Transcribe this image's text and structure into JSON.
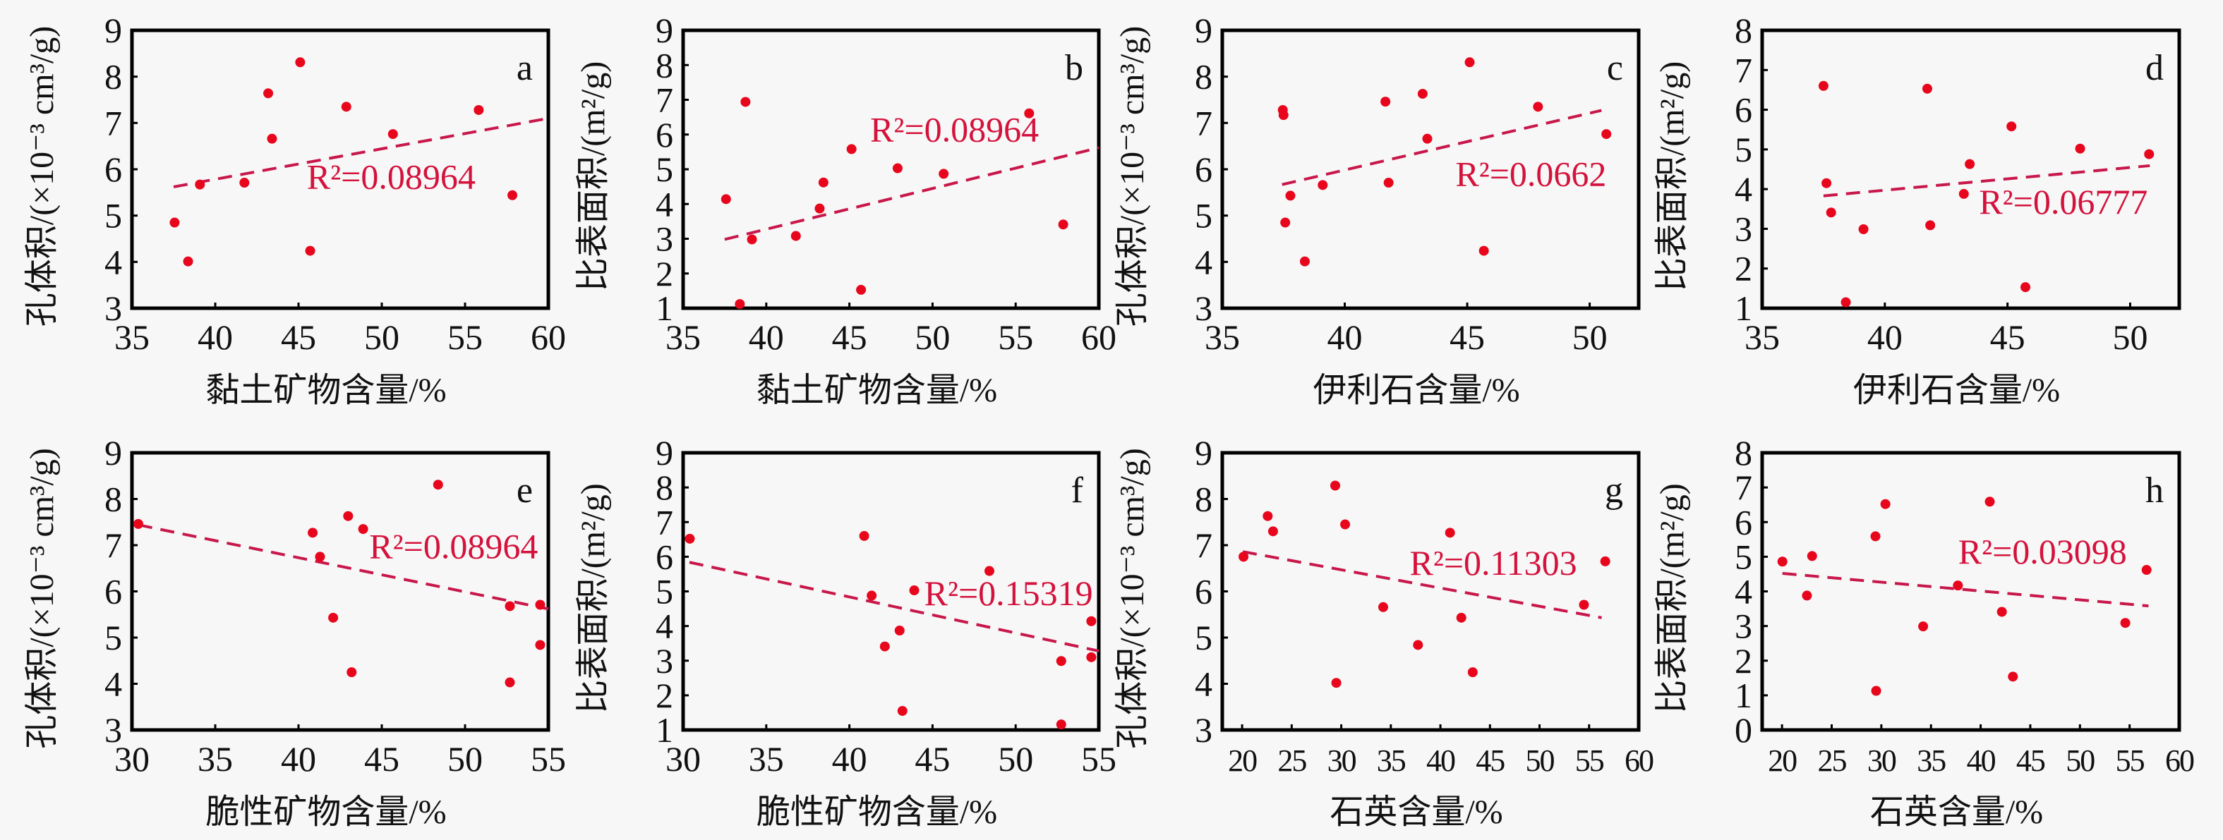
{
  "chart_data": [
    {
      "panel": "a",
      "type": "scatter",
      "xlabel": "黏土矿物含量/%",
      "ylabel": "孔体积/(×10⁻³ cm³/g)",
      "xlim": [
        35,
        60
      ],
      "ylim": [
        3,
        9
      ],
      "xticks": [
        35,
        40,
        45,
        50,
        55,
        60
      ],
      "yticks": [
        3,
        4,
        5,
        6,
        7,
        8,
        9
      ],
      "r2_label": "R²=0.08964",
      "points": [
        [
          37.56,
          4.85
        ],
        [
          38.37,
          4.01
        ],
        [
          39.08,
          5.67
        ],
        [
          41.75,
          5.71
        ],
        [
          43.18,
          7.64
        ],
        [
          43.41,
          6.66
        ],
        [
          45.1,
          8.31
        ],
        [
          45.7,
          4.24
        ],
        [
          47.87,
          7.35
        ],
        [
          50.67,
          6.76
        ],
        [
          55.82,
          7.28
        ],
        [
          57.84,
          5.44
        ]
      ],
      "trendline": [
        [
          37.5,
          5.62
        ],
        [
          60,
          7.1
        ]
      ]
    },
    {
      "panel": "b",
      "type": "scatter",
      "xlabel": "黏土矿物含量/%",
      "ylabel": "比表面积/(m²/g)",
      "xlim": [
        35,
        60
      ],
      "ylim": [
        1,
        9
      ],
      "xticks": [
        35,
        40,
        45,
        50,
        55,
        60
      ],
      "yticks": [
        1,
        2,
        3,
        4,
        5,
        6,
        7,
        8,
        9
      ],
      "r2_label": "R²=0.08964",
      "points": [
        [
          37.58,
          4.14
        ],
        [
          38.41,
          1.12
        ],
        [
          38.75,
          6.94
        ],
        [
          39.14,
          2.98
        ],
        [
          41.78,
          3.08
        ],
        [
          43.21,
          3.87
        ],
        [
          43.44,
          4.62
        ],
        [
          45.13,
          5.58
        ],
        [
          45.7,
          1.53
        ],
        [
          47.9,
          5.03
        ],
        [
          50.67,
          4.87
        ],
        [
          55.81,
          6.61
        ],
        [
          57.86,
          3.41
        ]
      ],
      "trendline": [
        [
          37.5,
          2.98
        ],
        [
          60,
          5.62
        ]
      ]
    },
    {
      "panel": "c",
      "type": "scatter",
      "xlabel": "伊利石含量/%",
      "ylabel": "孔体积/(×10⁻³ cm³/g)",
      "xlim": [
        35,
        52
      ],
      "ylim": [
        3,
        9
      ],
      "xticks": [
        35,
        40,
        45,
        50
      ],
      "yticks": [
        3,
        4,
        5,
        6,
        7,
        8,
        9
      ],
      "r2_label": "R²=0.0662",
      "points": [
        [
          37.47,
          7.28
        ],
        [
          37.5,
          7.17
        ],
        [
          37.57,
          4.85
        ],
        [
          37.78,
          5.43
        ],
        [
          38.37,
          4.01
        ],
        [
          39.1,
          5.66
        ],
        [
          41.66,
          7.46
        ],
        [
          41.79,
          5.71
        ],
        [
          43.18,
          7.63
        ],
        [
          43.37,
          6.66
        ],
        [
          45.1,
          8.31
        ],
        [
          45.68,
          4.24
        ],
        [
          47.89,
          7.35
        ],
        [
          50.68,
          6.76
        ]
      ],
      "trendline": [
        [
          37.44,
          5.67
        ],
        [
          50.48,
          7.27
        ]
      ]
    },
    {
      "panel": "d",
      "type": "scatter",
      "xlabel": "伊利石含量/%",
      "ylabel": "比表面积/(m²/g)",
      "xlim": [
        35,
        52
      ],
      "ylim": [
        1,
        8
      ],
      "xticks": [
        35,
        40,
        45,
        50
      ],
      "yticks": [
        1,
        2,
        3,
        4,
        5,
        6,
        7,
        8
      ],
      "r2_label": "R²=0.06777",
      "points": [
        [
          37.5,
          6.6
        ],
        [
          37.62,
          4.15
        ],
        [
          37.81,
          3.41
        ],
        [
          38.41,
          1.15
        ],
        [
          39.13,
          2.99
        ],
        [
          41.73,
          6.53
        ],
        [
          41.85,
          3.09
        ],
        [
          43.22,
          3.88
        ],
        [
          43.46,
          4.63
        ],
        [
          45.16,
          5.58
        ],
        [
          45.73,
          1.53
        ],
        [
          47.96,
          5.02
        ],
        [
          50.77,
          4.88
        ]
      ],
      "trendline": [
        [
          37.5,
          3.83
        ],
        [
          50.8,
          4.59
        ]
      ]
    },
    {
      "panel": "e",
      "type": "scatter",
      "xlabel": "脆性矿物含量/%",
      "ylabel": "孔体积/(×10⁻³ cm³/g)",
      "xlim": [
        30,
        55
      ],
      "ylim": [
        3,
        9
      ],
      "xticks": [
        30,
        35,
        40,
        45,
        50,
        55
      ],
      "yticks": [
        3,
        4,
        5,
        6,
        7,
        8,
        9
      ],
      "r2_label": "R²=0.08964",
      "points": [
        [
          30.38,
          7.46
        ],
        [
          40.85,
          7.27
        ],
        [
          41.29,
          6.75
        ],
        [
          42.08,
          5.43
        ],
        [
          42.98,
          7.63
        ],
        [
          43.19,
          4.25
        ],
        [
          43.88,
          7.35
        ],
        [
          48.38,
          8.31
        ],
        [
          52.69,
          5.68
        ],
        [
          52.69,
          4.03
        ],
        [
          54.51,
          5.71
        ],
        [
          54.51,
          4.84
        ]
      ],
      "trendline": [
        [
          30.38,
          7.44
        ],
        [
          55,
          5.62
        ]
      ]
    },
    {
      "panel": "f",
      "type": "scatter",
      "xlabel": "脆性矿物含量/%",
      "ylabel": "比表面积/(m²/g)",
      "xlim": [
        30,
        55
      ],
      "ylim": [
        1,
        9
      ],
      "xticks": [
        30,
        35,
        40,
        45,
        50,
        55
      ],
      "yticks": [
        1,
        2,
        3,
        4,
        5,
        6,
        7,
        8,
        9
      ],
      "r2_label": "R²=0.15319",
      "points": [
        [
          30.4,
          6.52
        ],
        [
          40.89,
          6.6
        ],
        [
          41.34,
          4.88
        ],
        [
          42.13,
          3.41
        ],
        [
          43.02,
          3.87
        ],
        [
          43.19,
          1.55
        ],
        [
          43.9,
          5.03
        ],
        [
          48.42,
          5.59
        ],
        [
          52.74,
          2.99
        ],
        [
          52.74,
          1.16
        ],
        [
          54.55,
          4.14
        ],
        [
          54.55,
          3.1
        ]
      ],
      "trendline": [
        [
          30.38,
          5.84
        ],
        [
          55,
          3.28
        ]
      ]
    },
    {
      "panel": "g",
      "type": "scatter",
      "xlabel": "石英含量/%",
      "ylabel": "孔体积/(×10⁻³ cm³/g)",
      "xlim": [
        18,
        60
      ],
      "ylim": [
        3,
        9
      ],
      "xticks": [
        20,
        25,
        30,
        35,
        40,
        45,
        50,
        55,
        60
      ],
      "yticks": [
        3,
        4,
        5,
        6,
        7,
        8,
        9
      ],
      "r2_label": "R²=0.11303",
      "points": [
        [
          20.14,
          6.75
        ],
        [
          22.58,
          7.63
        ],
        [
          23.12,
          7.3
        ],
        [
          29.39,
          8.29
        ],
        [
          29.5,
          4.02
        ],
        [
          30.39,
          7.45
        ],
        [
          34.23,
          5.66
        ],
        [
          37.74,
          4.84
        ],
        [
          40.97,
          7.27
        ],
        [
          42.11,
          5.43
        ],
        [
          43.26,
          4.25
        ],
        [
          54.48,
          5.71
        ],
        [
          56.63,
          6.65
        ]
      ],
      "trendline": [
        [
          20.07,
          6.86
        ],
        [
          56.27,
          5.43
        ]
      ]
    },
    {
      "panel": "h",
      "type": "scatter",
      "xlabel": "石英含量/%",
      "ylabel": "比表面积/(m²/g)",
      "xlim": [
        18,
        60
      ],
      "ylim": [
        0,
        8
      ],
      "xticks": [
        20,
        25,
        30,
        35,
        40,
        45,
        50,
        55,
        60
      ],
      "yticks": [
        0,
        1,
        2,
        3,
        4,
        5,
        6,
        7,
        8
      ],
      "r2_label": "R²=0.03098",
      "points": [
        [
          20.04,
          4.86
        ],
        [
          22.51,
          3.88
        ],
        [
          23.03,
          5.02
        ],
        [
          29.41,
          5.59
        ],
        [
          29.48,
          1.13
        ],
        [
          30.41,
          6.52
        ],
        [
          34.21,
          2.99
        ],
        [
          37.71,
          4.17
        ],
        [
          40.92,
          6.59
        ],
        [
          42.14,
          3.41
        ],
        [
          43.25,
          1.54
        ],
        [
          54.57,
          3.09
        ],
        [
          56.71,
          4.62
        ]
      ],
      "trendline": [
        [
          20.04,
          4.52
        ],
        [
          56.9,
          3.58
        ]
      ]
    }
  ],
  "colors": {
    "points": "#e8061c",
    "trendline": "#c8174a",
    "r2_text": "#d4123c",
    "axis": "#000000",
    "background": "#f7f7f7"
  }
}
